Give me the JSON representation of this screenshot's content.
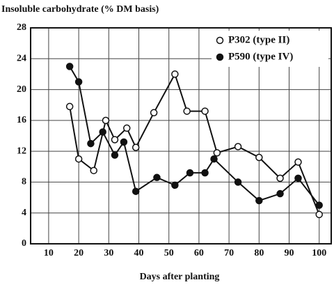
{
  "chart_data": {
    "type": "line",
    "title": "Insoluble carbohydrate (% DM basis)",
    "xlabel": "Days after planting",
    "series": [
      {
        "name": "P302 (type II)",
        "color": "#111111",
        "marker": "open",
        "x": [
          17,
          20,
          25,
          29,
          32,
          36,
          39,
          45,
          52,
          56,
          62,
          66,
          73,
          80,
          87,
          93,
          100
        ],
        "values": [
          17.8,
          11,
          9.5,
          16,
          13.5,
          15,
          12.5,
          17,
          22,
          17.2,
          17.2,
          11.8,
          12.6,
          11.2,
          8.5,
          10.6,
          3.8
        ]
      },
      {
        "name": "P590 (type IV)",
        "color": "#111111",
        "marker": "filled",
        "x": [
          17,
          20,
          24,
          28,
          32,
          35,
          39,
          46,
          52,
          57,
          62,
          65,
          73,
          80,
          87,
          93,
          100
        ],
        "values": [
          23,
          21,
          13,
          14.5,
          11.5,
          13.2,
          6.8,
          8.6,
          7.6,
          9.2,
          9.2,
          11,
          8,
          5.6,
          6.5,
          8.5,
          5
        ]
      }
    ],
    "xlim": [
      4,
      104
    ],
    "xticks": [
      10,
      20,
      30,
      40,
      50,
      60,
      70,
      80,
      90,
      100
    ],
    "ylim": [
      0,
      28
    ],
    "yticks": [
      0,
      4,
      8,
      12,
      16,
      20,
      24,
      28
    ],
    "grid": true,
    "legend": "upper right"
  }
}
